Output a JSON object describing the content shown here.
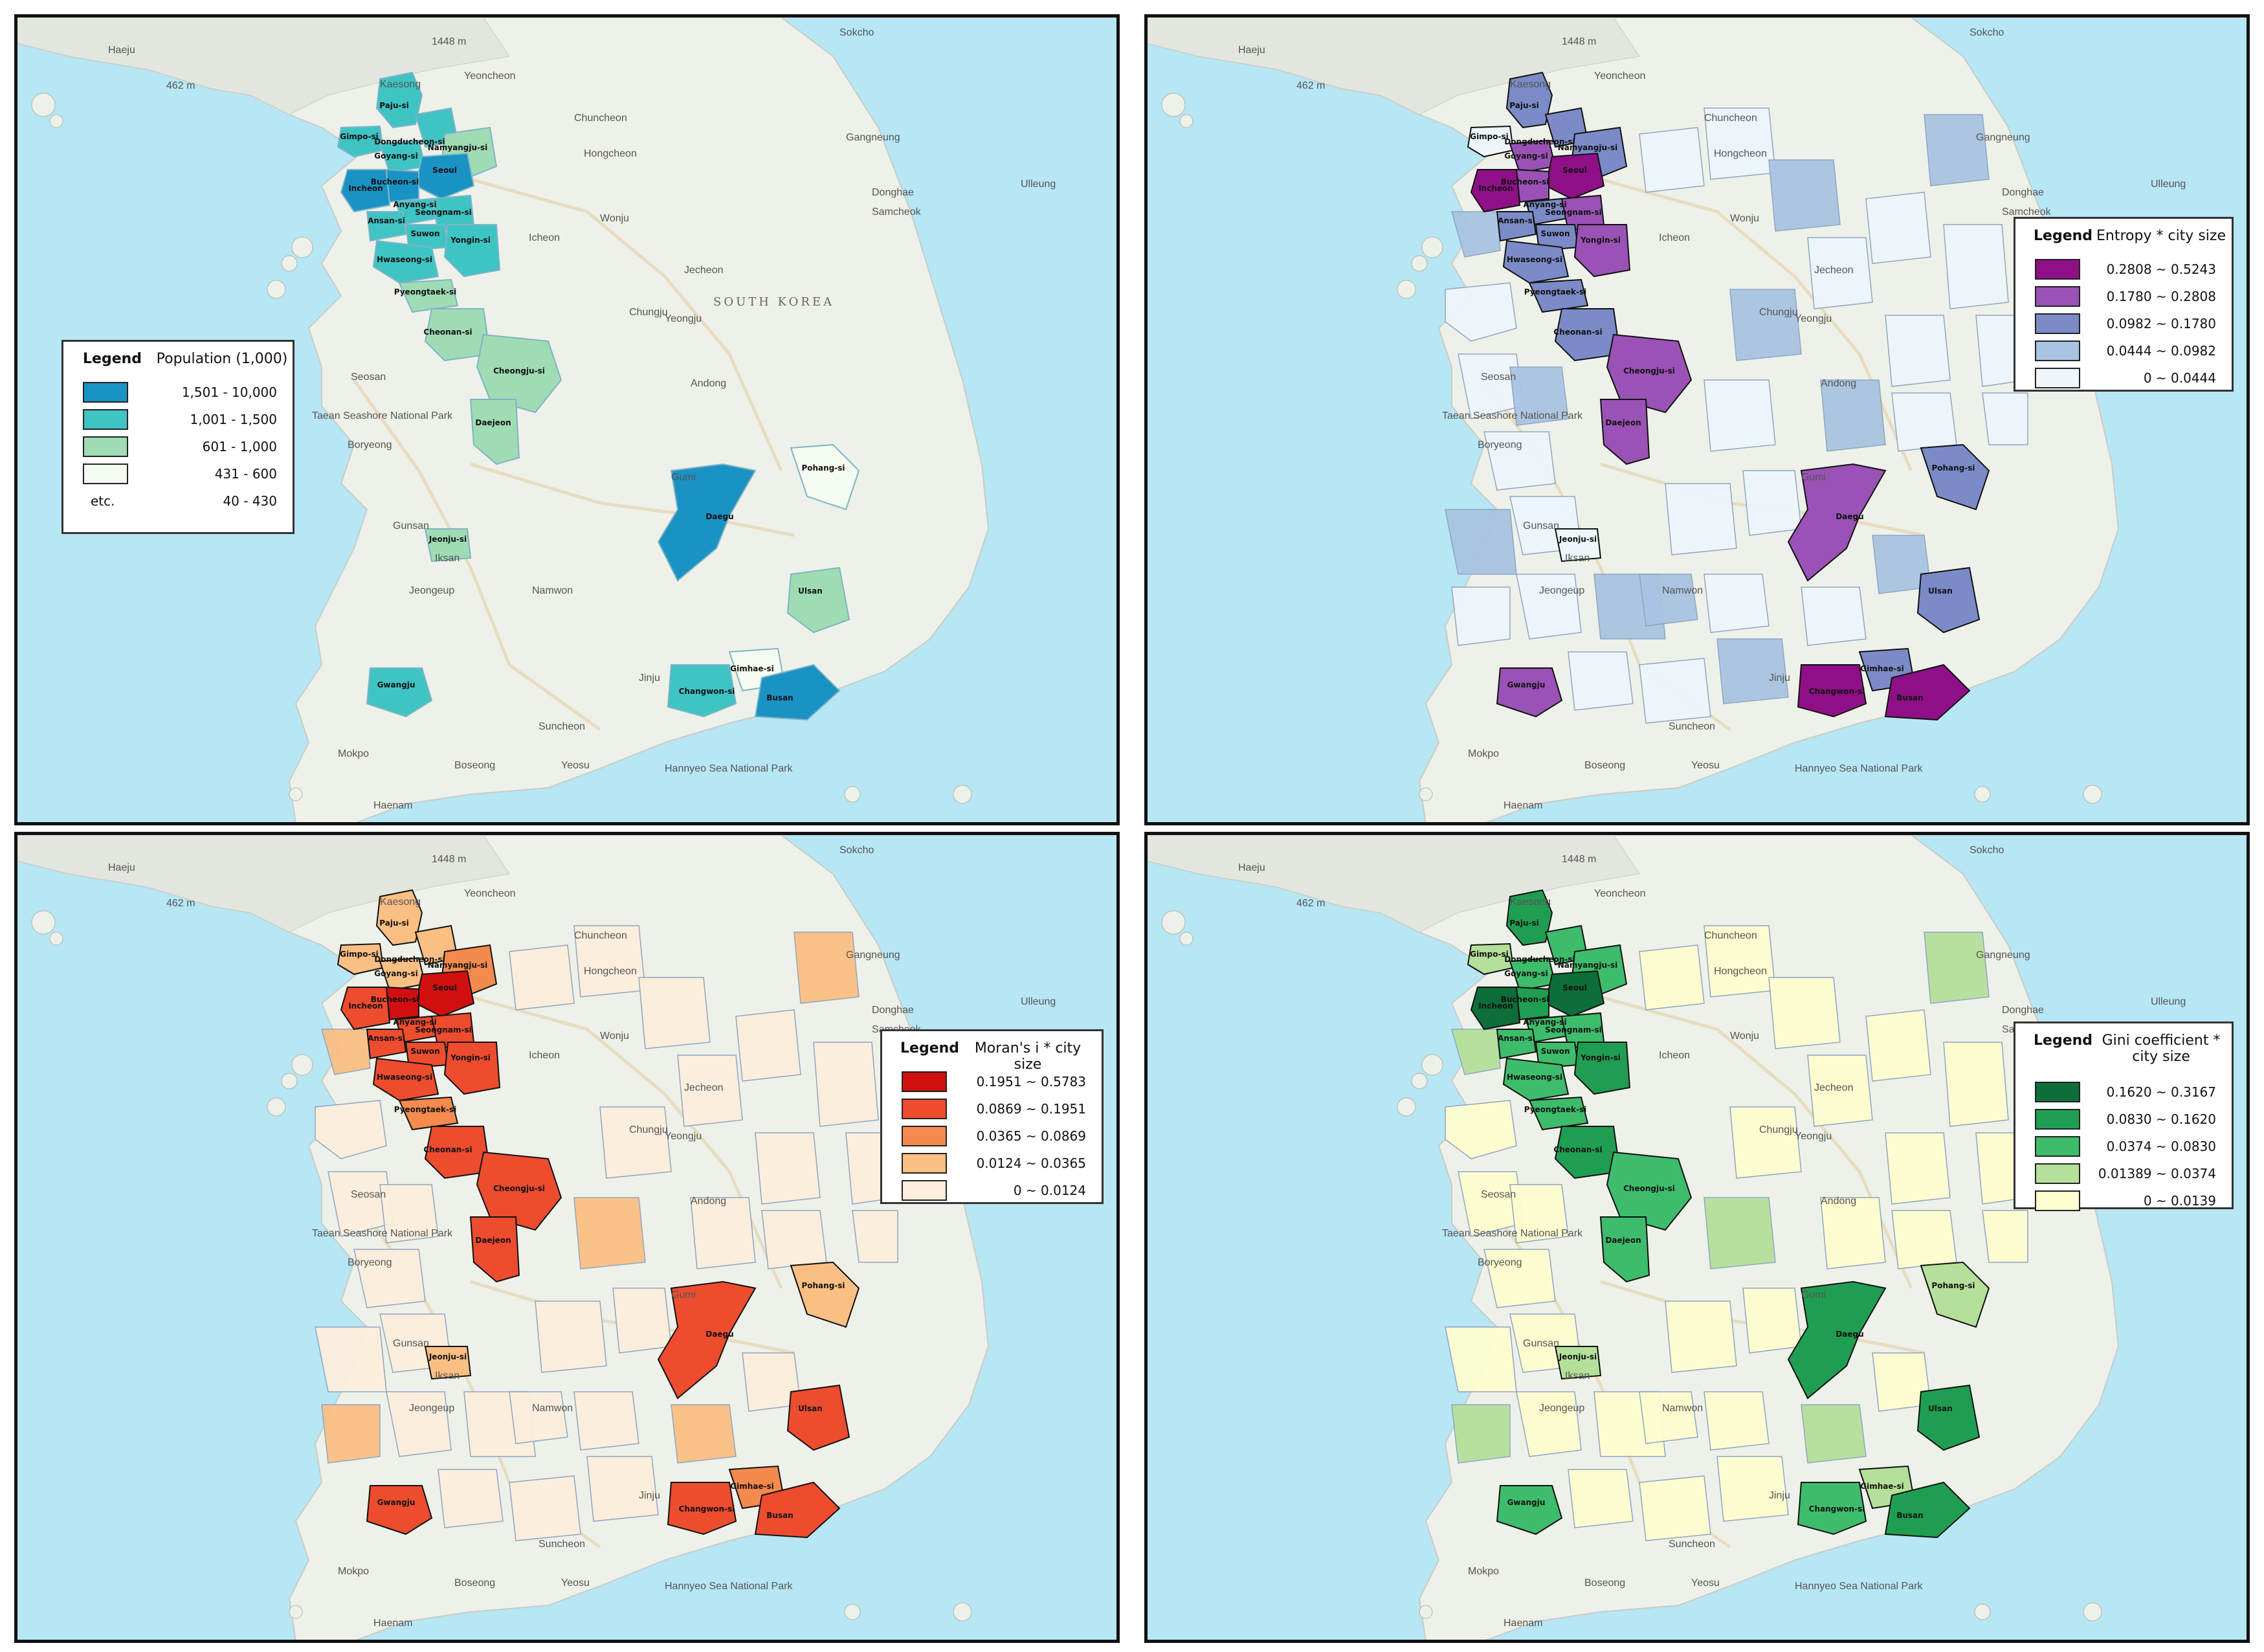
{
  "panels": [
    {
      "id": "population",
      "legend": {
        "title": "Legend",
        "variable": "Population (1,000)",
        "classes": [
          {
            "color": "#1a93c4",
            "label": "1,501 - 10,000"
          },
          {
            "color": "#3fc4c4",
            "label": "1,001 - 1,500"
          },
          {
            "color": "#9fdcb4",
            "label": "601 - 1,000"
          },
          {
            "color": "#f4fbf0",
            "label": "431 - 600"
          },
          {
            "color": null,
            "prefix": "etc.",
            "label": "40 - 430"
          }
        ]
      }
    },
    {
      "id": "entropy",
      "legend": {
        "title": "Legend",
        "variable": "Entropy * city size",
        "classes": [
          {
            "color": "#8f0f87",
            "label": "0.2808 ~ 0.5243"
          },
          {
            "color": "#9a52b6",
            "label": "0.1780 ~ 0.2808"
          },
          {
            "color": "#7b8bc8",
            "label": "0.0982 ~ 0.1780"
          },
          {
            "color": "#a9c4e2",
            "label": "0.0444 ~ 0.0982"
          },
          {
            "color": "#eef6fb",
            "label": "0 ~ 0.0444"
          }
        ]
      }
    },
    {
      "id": "morans",
      "legend": {
        "title": "Legend",
        "variable": "Moran's i * city size",
        "classes": [
          {
            "color": "#d10f0f",
            "label": "0.1951 ~ 0.5783"
          },
          {
            "color": "#ee4c2e",
            "label": "0.0869 ~ 0.1951"
          },
          {
            "color": "#f48a4e",
            "label": "0.0365 ~ 0.0869"
          },
          {
            "color": "#fbbf84",
            "label": "0.0124 ~ 0.0365"
          },
          {
            "color": "#fdeedd",
            "label": "0 ~ 0.0124"
          }
        ]
      }
    },
    {
      "id": "gini",
      "legend": {
        "title": "Legend",
        "variable": "Gini coefficient * city size",
        "classes": [
          {
            "color": "#0d6e3a",
            "label": "0.1620 ~ 0.3167"
          },
          {
            "color": "#1f9e52",
            "label": "0.0830 ~ 0.1620"
          },
          {
            "color": "#3dbd6b",
            "label": "0.0374 ~ 0.0830"
          },
          {
            "color": "#b5e09a",
            "label": "0.01389 ~ 0.0374"
          },
          {
            "color": "#fdfdcf",
            "label": "0 ~ 0.0139"
          }
        ]
      }
    }
  ],
  "basemap_labels": [
    {
      "text": "Haeju"
    },
    {
      "text": "Kaesong"
    },
    {
      "text": "Yeoncheon"
    },
    {
      "text": "Sokcho"
    },
    {
      "text": "Chuncheon"
    },
    {
      "text": "Gangneung"
    },
    {
      "text": "Hongcheon"
    },
    {
      "text": "Wonju"
    },
    {
      "text": "Donghae"
    },
    {
      "text": "Samcheok"
    },
    {
      "text": "Ulleung"
    },
    {
      "text": "Jecheon"
    },
    {
      "text": "Chungju"
    },
    {
      "text": "Yeongju"
    },
    {
      "text": "Andong"
    },
    {
      "text": "Icheon"
    },
    {
      "text": "Seosan"
    },
    {
      "text": "Boryeong"
    },
    {
      "text": "Gunsan"
    },
    {
      "text": "Iksan"
    },
    {
      "text": "Jeongeup"
    },
    {
      "text": "Namwon"
    },
    {
      "text": "Jinju"
    },
    {
      "text": "Suncheon"
    },
    {
      "text": "Mokpo"
    },
    {
      "text": "Boseong"
    },
    {
      "text": "Yeosu"
    },
    {
      "text": "Haenam"
    },
    {
      "text": "Gumi"
    },
    {
      "text": "Taean Seashore National Park"
    },
    {
      "text": "Hannyeo Sea National Park"
    },
    {
      "text": "462 m"
    },
    {
      "text": "1448 m"
    }
  ],
  "country_label": "SOUTH KOREA",
  "cities": [
    {
      "name": "Paju-si"
    },
    {
      "name": "Gimpo-si"
    },
    {
      "name": "Goyang-si"
    },
    {
      "name": "Dongducheon-si"
    },
    {
      "name": "Namyangju-si"
    },
    {
      "name": "Seoul"
    },
    {
      "name": "Incheon"
    },
    {
      "name": "Bucheon-si"
    },
    {
      "name": "Anyang-si"
    },
    {
      "name": "Seongnam-si"
    },
    {
      "name": "Ansan-si"
    },
    {
      "name": "Suwon"
    },
    {
      "name": "Yongin-si"
    },
    {
      "name": "Hwaseong-si"
    },
    {
      "name": "Pyeongtaek-si"
    },
    {
      "name": "Cheonan-si"
    },
    {
      "name": "Cheongju-si"
    },
    {
      "name": "Daejeon"
    },
    {
      "name": "Jeonju-si"
    },
    {
      "name": "Gwangju"
    },
    {
      "name": "Daegu"
    },
    {
      "name": "Pohang-si"
    },
    {
      "name": "Ulsan"
    },
    {
      "name": "Gimhae-si"
    },
    {
      "name": "Changwon-si"
    },
    {
      "name": "Busan"
    }
  ]
}
